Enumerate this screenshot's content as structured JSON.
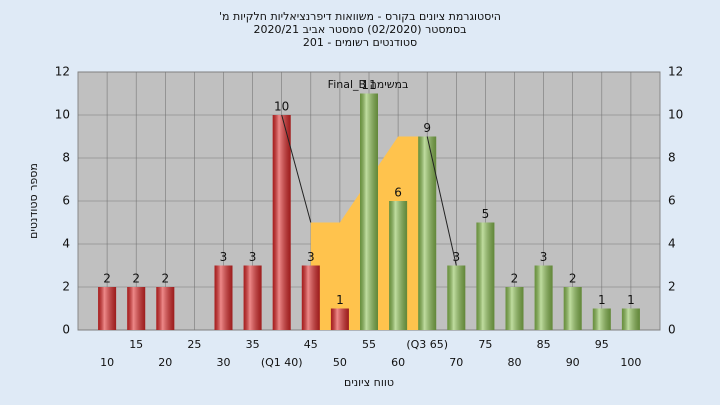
{
  "chart_data": {
    "type": "bar",
    "title": [
      "'היסטוגרמת ציונים בקורס - משוואות דיפרנציאליות חלקיות מ",
      "בסמסטר  (02/2020)  סמסטר אביב  2020/21",
      "סטודנטים רשומים - 201"
    ],
    "annotation": "Final_B במשימה",
    "x_label": "טווח ציונים",
    "y_label": "מספר סטודנטים",
    "categories": [
      "10",
      "15",
      "20",
      "25",
      "30",
      "35",
      "(Q1 40)",
      "45",
      "50",
      "55",
      "60",
      "(Q3 65)",
      "70",
      "75",
      "80",
      "85",
      "90",
      "95",
      "100"
    ],
    "values": [
      2,
      2,
      2,
      0,
      3,
      3,
      10,
      3,
      1,
      11,
      6,
      9,
      3,
      5,
      2,
      3,
      2,
      1,
      1
    ],
    "value_labels": [
      "2",
      "2",
      "2",
      null,
      "3",
      "3",
      "10",
      "3",
      "1",
      "11",
      "6",
      "9",
      "3",
      "5",
      "2",
      "3",
      "2",
      "1",
      "1"
    ],
    "bar_colors": [
      "#e02828",
      "#e02828",
      "#e02828",
      "#e02828",
      "#e02828",
      "#e02828",
      "#e02828",
      "#e02828",
      "#e02828",
      "#8cc152",
      "#8cc152",
      "#8cc152",
      "#8cc152",
      "#8cc152",
      "#8cc152",
      "#8cc152",
      "#8cc152",
      "#8cc152",
      "#8cc152"
    ],
    "overlay": {
      "color": "#ffc34d",
      "values": [
        null,
        null,
        null,
        null,
        null,
        null,
        null,
        5,
        5,
        7,
        9,
        9,
        null,
        null,
        null,
        null,
        null,
        null,
        null
      ]
    },
    "trend": {
      "color": "#222222",
      "values": [
        null,
        null,
        null,
        null,
        null,
        null,
        10,
        5,
        null,
        null,
        null,
        9,
        3,
        null,
        null,
        null,
        null,
        null,
        null
      ]
    },
    "ylim": [
      0,
      12
    ],
    "yticks": [
      0,
      2,
      4,
      6,
      8,
      10,
      12
    ],
    "grid": true
  }
}
